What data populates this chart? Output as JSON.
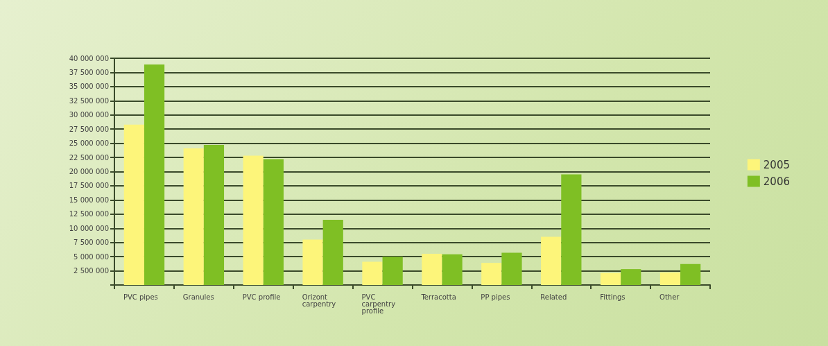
{
  "chart_data": {
    "type": "bar",
    "categories": [
      "PVC pipes",
      "Granules",
      "PVC profile",
      "Orizont carpentry",
      "PVC carpentry profile",
      "Terracotta",
      "PP pipes",
      "Related",
      "Fittings",
      "Other"
    ],
    "series": [
      {
        "name": "2005",
        "color": "#fdf57a",
        "values": [
          28300000,
          24100000,
          22800000,
          8000000,
          4100000,
          5500000,
          3900000,
          8500000,
          2100000,
          2200000
        ]
      },
      {
        "name": "2006",
        "color": "#7fbf24",
        "values": [
          38900000,
          24700000,
          22200000,
          11500000,
          5000000,
          5400000,
          5700000,
          19500000,
          2800000,
          3700000
        ]
      }
    ],
    "ylim": [
      0,
      40000000
    ],
    "yticks": [
      {
        "value": 0,
        "label": null
      },
      2500000,
      5000000,
      7500000,
      10000000,
      12500000,
      15000000,
      17500000,
      20000000,
      22500000,
      25000000,
      27500000,
      30000000,
      32500000,
      35000000,
      37500000,
      40000000
    ],
    "grid": "y",
    "legend": "right"
  }
}
